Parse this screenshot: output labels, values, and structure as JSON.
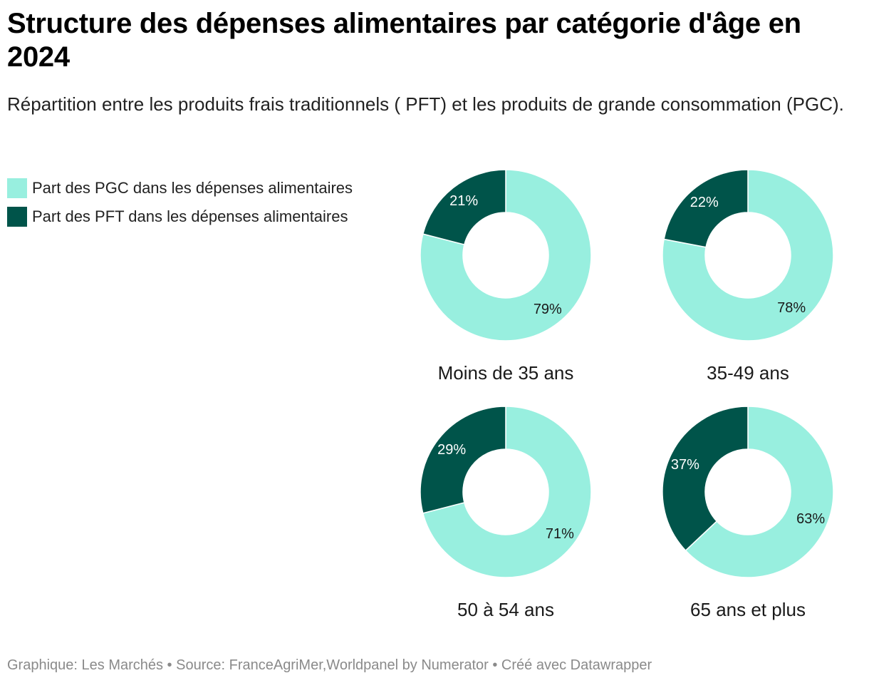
{
  "title": "Structure des dépenses alimentaires par catégorie d'âge en 2024",
  "subtitle": "Répartition entre les produits frais traditionnels ( PFT) et les produits de grande consommation (PGC).",
  "legend": [
    {
      "label": "Part des PGC dans les dépenses alimentaires",
      "color": "#98efdf"
    },
    {
      "label": "Part des PFT dans les dépenses alimentaires",
      "color": "#00544a"
    }
  ],
  "chart_data": [
    {
      "type": "pie",
      "title": "Moins de 35 ans",
      "categories": [
        "Part des PGC dans les dépenses alimentaires",
        "Part des PFT dans les dépenses alimentaires"
      ],
      "values": [
        79,
        21
      ],
      "labels": [
        "79%",
        "21%"
      ]
    },
    {
      "type": "pie",
      "title": "35-49 ans",
      "categories": [
        "Part des PGC dans les dépenses alimentaires",
        "Part des PFT dans les dépenses alimentaires"
      ],
      "values": [
        78,
        22
      ],
      "labels": [
        "78%",
        "22%"
      ]
    },
    {
      "type": "pie",
      "title": "50 à 54 ans",
      "categories": [
        "Part des PGC dans les dépenses alimentaires",
        "Part des PFT dans les dépenses alimentaires"
      ],
      "values": [
        71,
        29
      ],
      "labels": [
        "71%",
        "29%"
      ]
    },
    {
      "type": "pie",
      "title": "65 ans et plus",
      "categories": [
        "Part des PGC dans les dépenses alimentaires",
        "Part des PFT dans les dépenses alimentaires"
      ],
      "values": [
        63,
        37
      ],
      "labels": [
        "63%",
        "37%"
      ]
    }
  ],
  "footer": "Graphique: Les Marchés • Source: FranceAgriMer,Worldpanel by Numerator  • Créé avec Datawrapper"
}
